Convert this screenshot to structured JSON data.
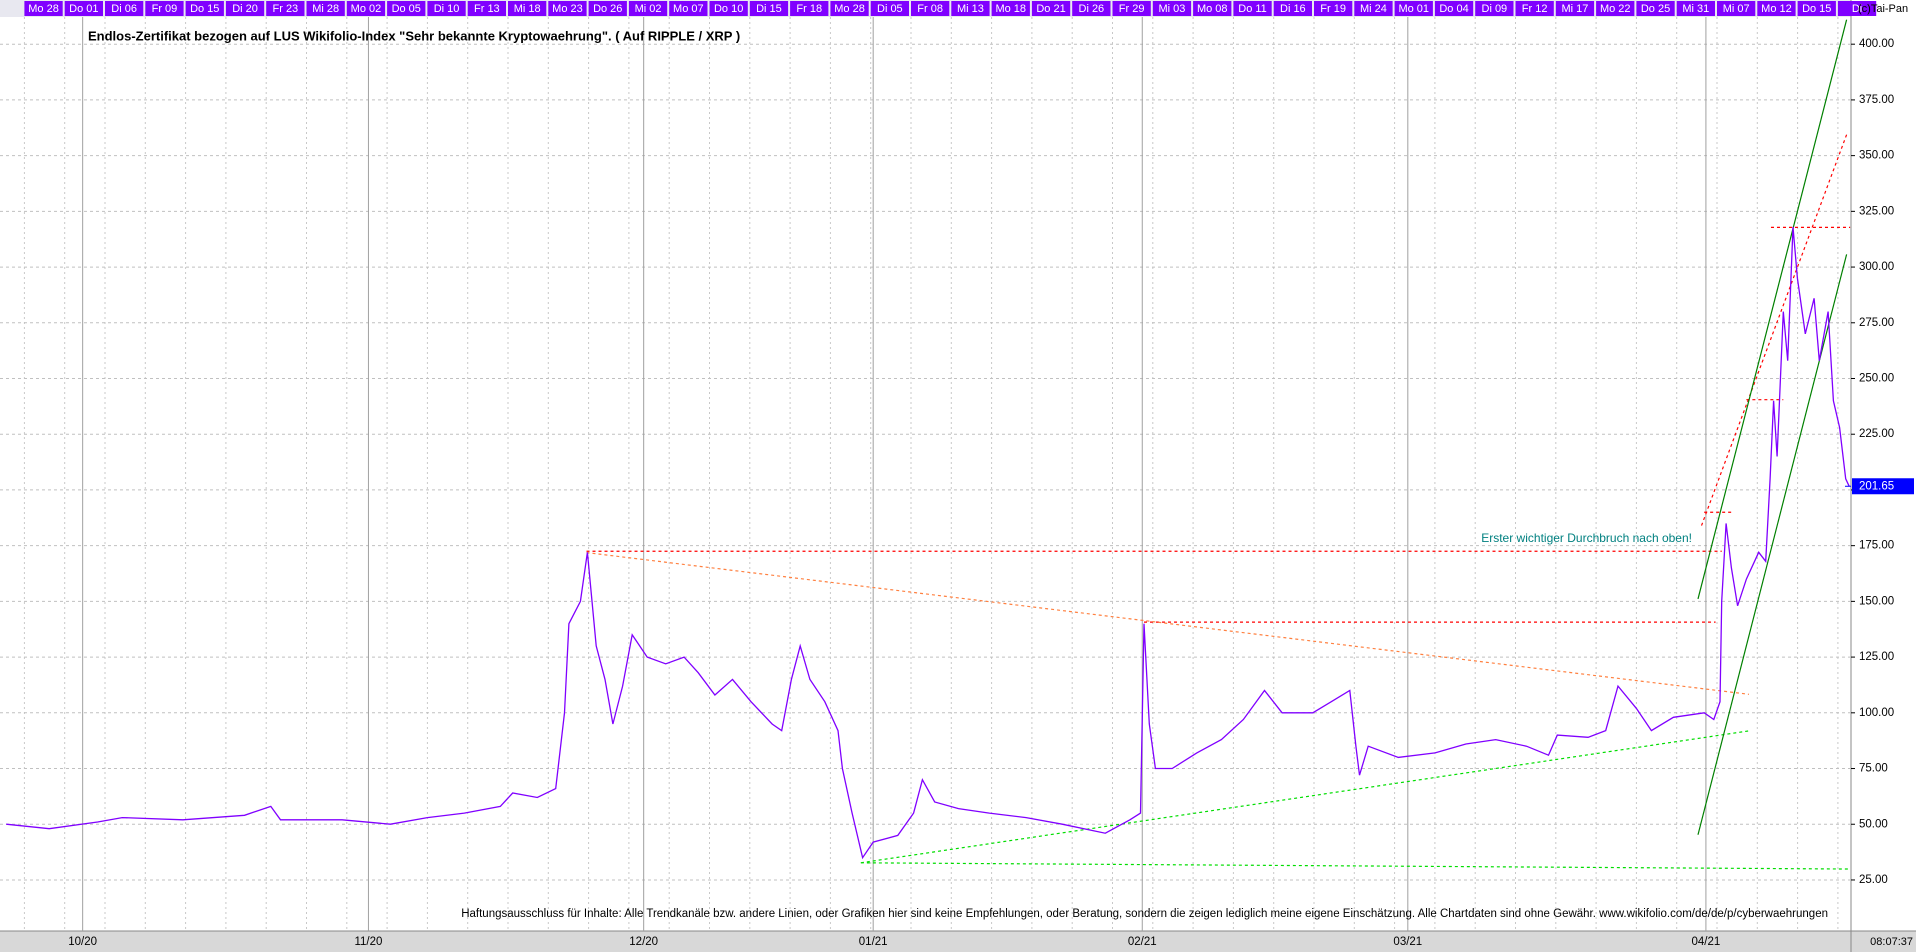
{
  "chart_data": {
    "type": "line",
    "title": "Endlos-Zertifikat bezogen auf LUS Wikifolio-Index \"Sehr bekannte Kryptowaehrung\". ( Auf RIPPLE / XRP )",
    "annotation": "Erster wichtiger Durchbruch nach oben!",
    "disclaimer": "Haftungsausschluss für Inhalte: Alle Trendkanäle bzw. andere Linien, oder Grafiken hier sind keine Empfehlungen, oder Beratung, sondern die zeigen lediglich meine eigene Einschätzung. Alle Chartdaten sind ohne Gewähr.  www.wikifolio.com/de/de/p/cyberwaehrungen",
    "copyright": "(c)Tai-Pan",
    "time": "08:07:37",
    "last_price": 201.65,
    "color": "#8000ff",
    "grid": true,
    "top_dates": [
      "Mo 28",
      "Do 01",
      "Di 06",
      "Fr 09",
      "Do 15",
      "Di 20",
      "Fr 23",
      "Mi 28",
      "Mo 02",
      "Do 05",
      "Di 10",
      "Fr 13",
      "Mi 18",
      "Mo 23",
      "Do 26",
      "Mi 02",
      "Mo 07",
      "Do 10",
      "Di 15",
      "Fr 18",
      "Mo 28",
      "Di 05",
      "Fr 08",
      "Mi 13",
      "Mo 18",
      "Do 21",
      "Di 26",
      "Fr 29",
      "Mi 03",
      "Mo 08",
      "Do 11",
      "Di 16",
      "Fr 19",
      "Mi 24",
      "Mo 01",
      "Do 04",
      "Di 09",
      "Fr 12",
      "Mi 17",
      "Mo 22",
      "Do 25",
      "Mi 31",
      "Mi 07",
      "Mo 12",
      "Do 15",
      "Di"
    ],
    "x": [
      0.7,
      5.6,
      11.1,
      13.9,
      20.8,
      27.8,
      30.8,
      31.9,
      38.9,
      44.4,
      48.6,
      52.8,
      56.9,
      58.3,
      61.1,
      63.2,
      64.2,
      64.7,
      66,
      66.8,
      67.8,
      68.8,
      69.7,
      70.8,
      71.9,
      73.6,
      75.7,
      77.8,
      79.4,
      81.3,
      83.3,
      85.4,
      87.8,
      88.9,
      90,
      91,
      92.1,
      93.8,
      95.3,
      95.8,
      96.9,
      98.1,
      99.3,
      102.1,
      103.9,
      104.9,
      106.3,
      109,
      112.5,
      116.7,
      120.8,
      125.7,
      128.5,
      129.7,
      130.1,
      130.7,
      131.4,
      133.3,
      136.1,
      138.9,
      141.4,
      143.8,
      145.8,
      149.3,
      151.4,
      153.5,
      154.2,
      154.6,
      155.6,
      159,
      163.2,
      166.7,
      170.1,
      173.6,
      176.1,
      177.1,
      180.6,
      182.6,
      184,
      186.1,
      187.8,
      190.3,
      193.8,
      194.9,
      195.6,
      195.8,
      196.3,
      196.9,
      197.6,
      198.6,
      200,
      200.8,
      201.3,
      201.7,
      202.1,
      202.8,
      203.3,
      203.9,
      204.4,
      205.3,
      206.3,
      206.9,
      207.9,
      208.5,
      209.2,
      209.9,
      210.3
    ],
    "values": [
      50,
      48,
      51,
      53,
      52,
      54,
      58,
      52,
      52,
      50,
      53,
      55,
      58,
      64,
      62,
      66,
      100,
      140,
      150,
      172,
      130,
      115,
      95,
      112,
      135,
      125,
      122,
      125,
      118,
      108,
      115,
      105,
      95,
      92,
      115,
      130,
      115,
      105,
      92,
      75,
      55,
      35,
      42,
      45,
      55,
      70,
      60,
      57,
      55,
      53,
      50,
      46,
      52,
      55,
      140,
      95,
      75,
      75,
      82,
      88,
      97,
      110,
      100,
      100,
      105,
      110,
      85,
      72,
      85,
      80,
      82,
      86,
      88,
      85,
      81,
      90,
      89,
      92,
      112,
      102,
      92,
      98,
      100,
      97,
      105,
      150,
      185,
      165,
      148,
      160,
      172,
      168,
      205,
      240,
      215,
      280,
      258,
      318,
      295,
      270,
      286,
      258,
      280,
      240,
      228,
      205,
      201.65
    ],
    "xlim": [
      0,
      210.5
    ],
    "ylim": [
      2.1,
      412.2
    ],
    "xticks": [
      {
        "value": 9.4,
        "label": "10/20"
      },
      {
        "value": 41.9,
        "label": "11/20"
      },
      {
        "value": 73.2,
        "label": "12/20"
      },
      {
        "value": 99.3,
        "label": "01/21"
      },
      {
        "value": 129.9,
        "label": "02/21"
      },
      {
        "value": 160.1,
        "label": "03/21"
      },
      {
        "value": 194,
        "label": "04/21"
      }
    ],
    "yticks": [
      {
        "value": 25,
        "label": "25.00"
      },
      {
        "value": 50,
        "label": "50.00"
      },
      {
        "value": 75,
        "label": "75.00"
      },
      {
        "value": 100,
        "label": "100.00"
      },
      {
        "value": 125,
        "label": "125.00"
      },
      {
        "value": 150,
        "label": "150.00"
      },
      {
        "value": 175,
        "label": "175.00"
      },
      {
        "value": 200,
        "label": "200.00"
      },
      {
        "value": 225,
        "label": "225.00"
      },
      {
        "value": 250,
        "label": "250.00"
      },
      {
        "value": 275,
        "label": "275.00"
      },
      {
        "value": 300,
        "label": "300.00"
      },
      {
        "value": 325,
        "label": "325.00"
      },
      {
        "value": 350,
        "label": "350.00"
      },
      {
        "value": 375,
        "label": "375.00"
      },
      {
        "value": 400,
        "label": "400.00"
      }
    ],
    "trendlines": [
      {
        "points": [
          66.7,
          172.5,
          195.8,
          172.5
        ],
        "color": "#ff0000",
        "dashed": true
      },
      {
        "points": [
          130.1,
          140.7,
          195.1,
          140.7
        ],
        "color": "#ff0000",
        "dashed": true
      },
      {
        "points": [
          193.8,
          190,
          197.2,
          190
        ],
        "color": "#ff0000",
        "dashed": true
      },
      {
        "points": [
          198.6,
          240.5,
          202.8,
          240.5
        ],
        "color": "#ff0000",
        "dashed": true
      },
      {
        "points": [
          201.4,
          317.8,
          210.4,
          317.8
        ],
        "color": "#ff0000",
        "dashed": true
      },
      {
        "points": [
          66.7,
          171.9,
          198.9,
          108.3
        ],
        "color": "#ff8040",
        "dashed": true
      },
      {
        "points": [
          97.9,
          32.7,
          198.9,
          91.9
        ],
        "color": "#00dd00",
        "dashed": true
      },
      {
        "points": [
          97.9,
          32.7,
          210.4,
          29.9
        ],
        "color": "#00dd00",
        "dashed": true
      },
      {
        "points": [
          193.5,
          184,
          210,
          359.4
        ],
        "color": "#ff0000",
        "dashed": true
      },
      {
        "points": [
          193.1,
          151.1,
          210,
          411
        ],
        "color": "#008000",
        "dashed": false
      },
      {
        "points": [
          193.1,
          45.3,
          210,
          305.7
        ],
        "color": "#008000",
        "dashed": false
      }
    ]
  }
}
